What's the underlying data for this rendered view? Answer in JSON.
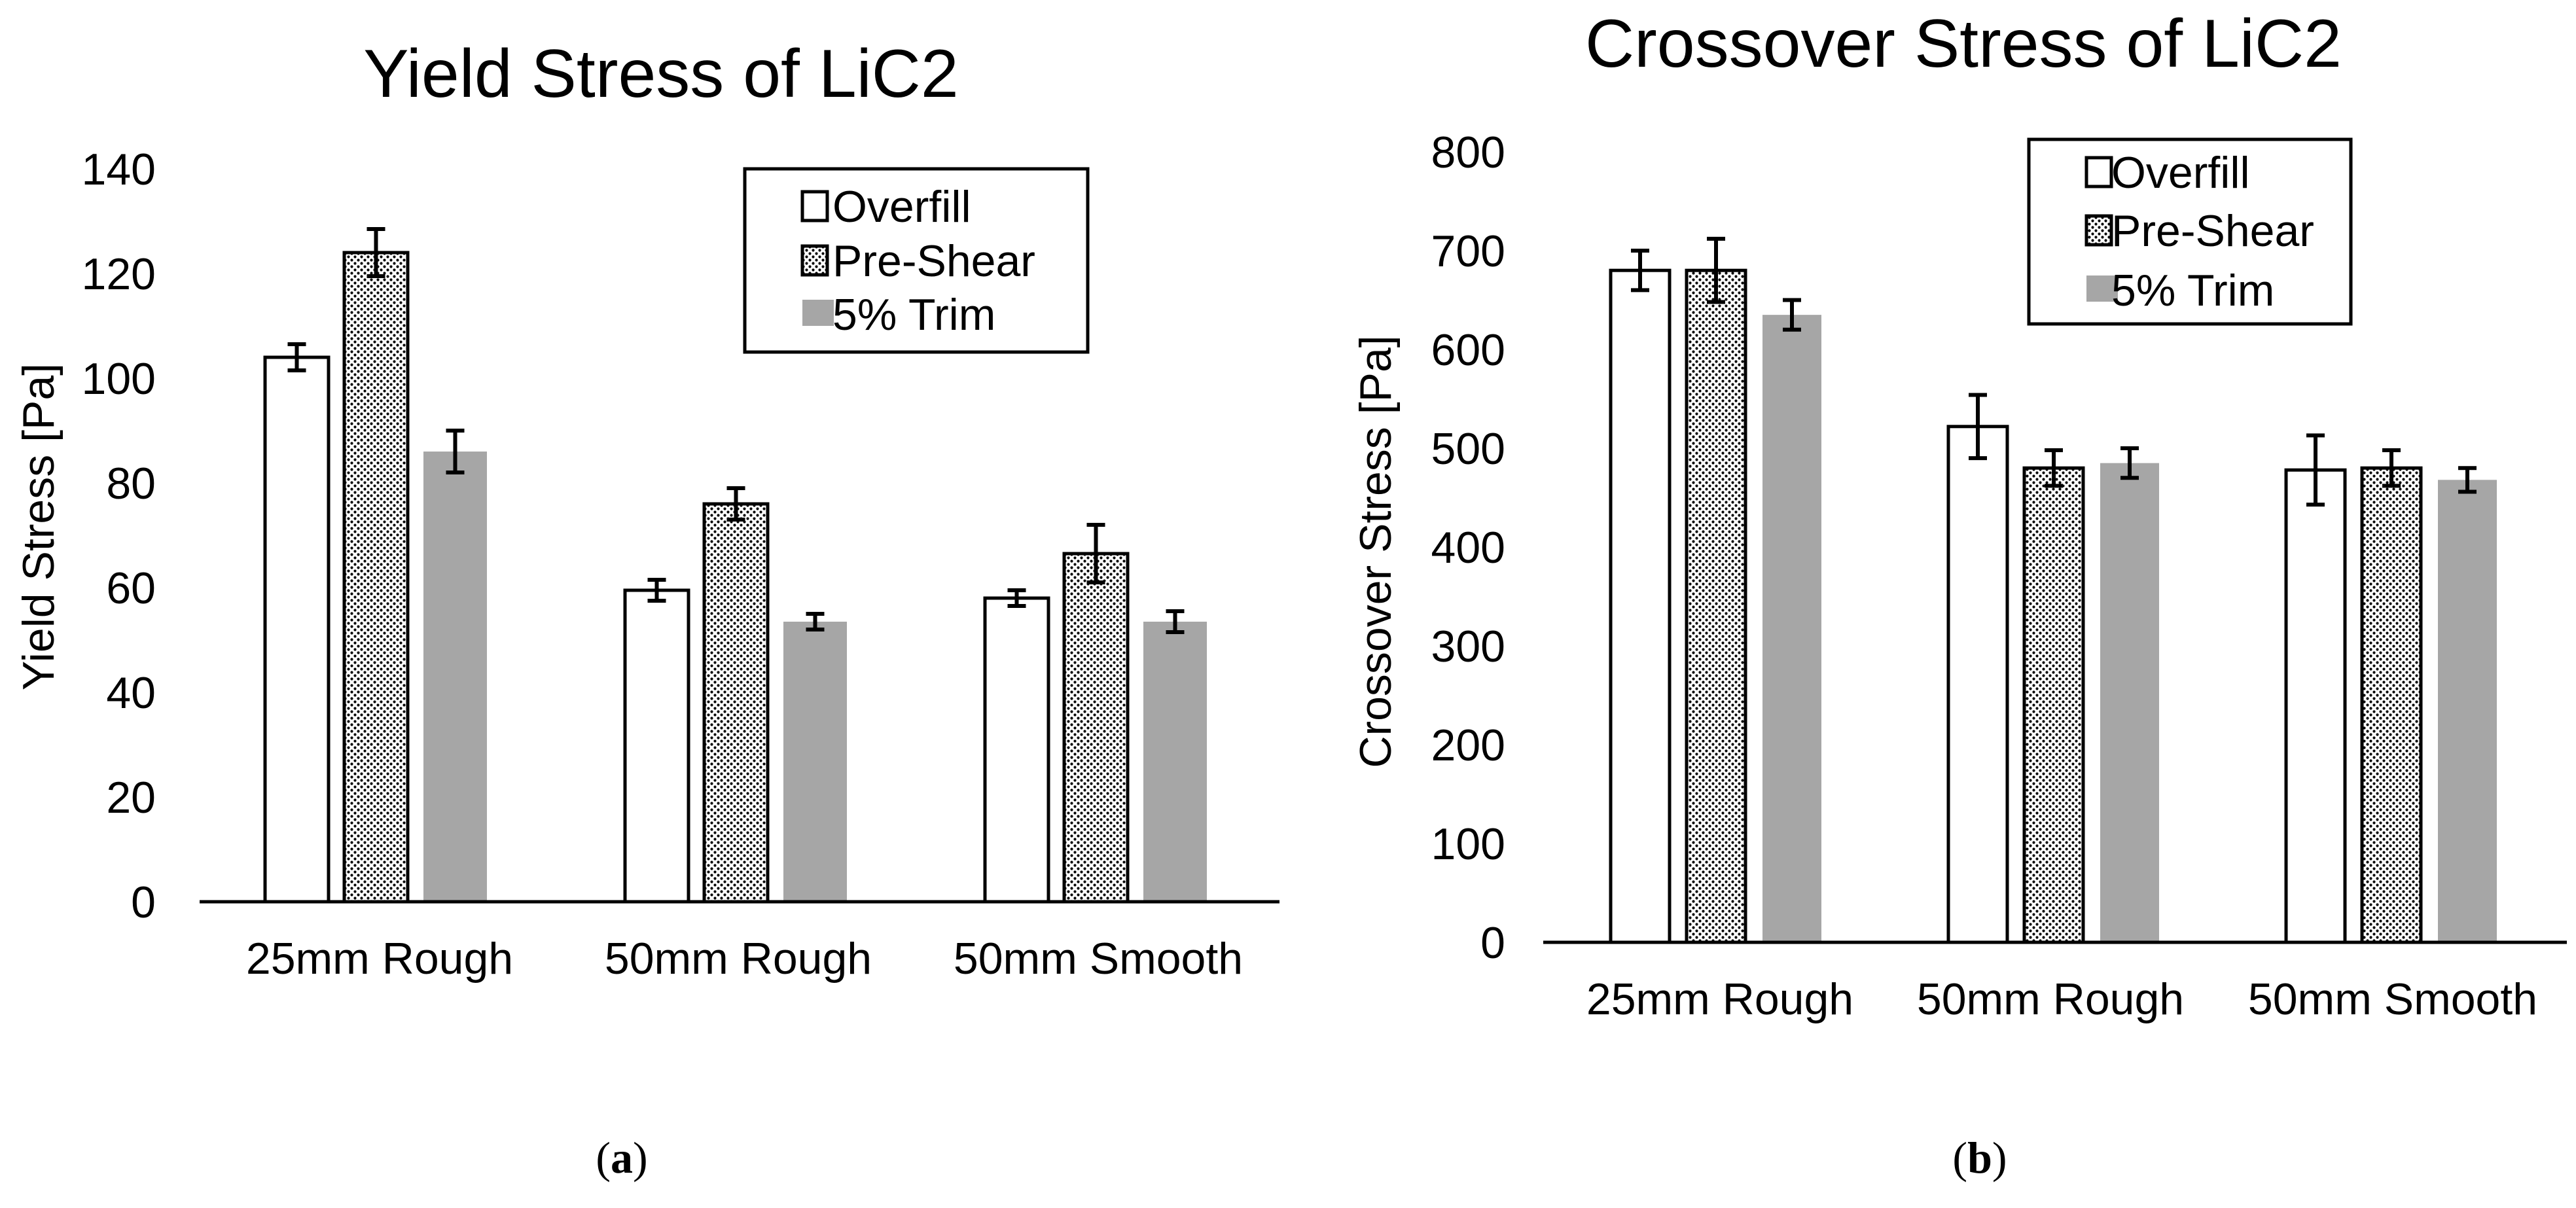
{
  "colors": {
    "overfill": "#ffffff",
    "preshear_base": "#ffffff",
    "preshear_dot": "#000000",
    "trim": "#a6a6a6",
    "axis": "#000000"
  },
  "chart_data": [
    {
      "type": "bar",
      "panel_label": "a",
      "title": "Yield Stress of LiC2",
      "xlabel": "",
      "ylabel": "Yield Stress [Pa]",
      "ylim": [
        0,
        140
      ],
      "yticks": [
        0,
        20,
        40,
        60,
        80,
        100,
        120,
        140
      ],
      "categories": [
        "25mm Rough",
        "50mm Rough",
        "50mm Smooth"
      ],
      "legend_position": "top-right",
      "series": [
        {
          "name": "Overfill",
          "pattern": "outline",
          "values": [
            104,
            59.5,
            58
          ],
          "errors": [
            2.5,
            2,
            1.5
          ]
        },
        {
          "name": "Pre-Shear",
          "pattern": "dotted",
          "values": [
            124,
            76,
            66.5
          ],
          "errors": [
            4.5,
            3,
            5.5
          ]
        },
        {
          "name": "5% Trim",
          "pattern": "gray",
          "values": [
            86,
            53.5,
            53.5
          ],
          "errors": [
            4,
            1.5,
            2
          ]
        }
      ]
    },
    {
      "type": "bar",
      "panel_label": "b",
      "title": "Crossover Stress of LiC2",
      "xlabel": "",
      "ylabel": "Crossover Stress [Pa]",
      "ylim": [
        0,
        800
      ],
      "yticks": [
        0,
        100,
        200,
        300,
        400,
        500,
        600,
        700,
        800
      ],
      "categories": [
        "25mm Rough",
        "50mm Rough",
        "50mm Smooth"
      ],
      "legend_position": "top-right",
      "series": [
        {
          "name": "Overfill",
          "pattern": "outline",
          "values": [
            680,
            522,
            478
          ],
          "errors": [
            20,
            32,
            35
          ]
        },
        {
          "name": "Pre-Shear",
          "pattern": "dotted",
          "values": [
            680,
            480,
            480
          ],
          "errors": [
            32,
            18,
            18
          ]
        },
        {
          "name": "5% Trim",
          "pattern": "gray",
          "values": [
            635,
            485,
            468
          ],
          "errors": [
            15,
            15,
            12
          ]
        }
      ]
    }
  ]
}
